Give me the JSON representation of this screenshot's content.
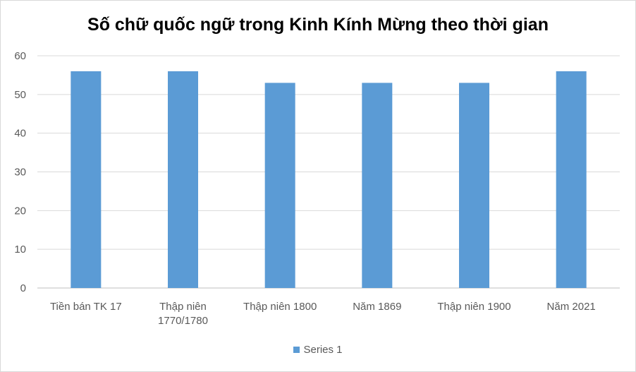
{
  "chart_data": {
    "type": "bar",
    "title": "Số chữ quốc ngữ trong Kinh Kính Mừng theo thời gian",
    "categories": [
      "Tiền bán TK 17",
      "Thập niên 1770/1780",
      "Thập niên 1800",
      "Năm 1869",
      "Thập niên 1900",
      "Năm 2021"
    ],
    "series": [
      {
        "name": "Series 1",
        "values": [
          56,
          56,
          53,
          53,
          53,
          56
        ],
        "color": "#5b9bd5"
      }
    ],
    "ylim": [
      0,
      60
    ],
    "yticks": [
      0,
      10,
      20,
      30,
      40,
      50,
      60
    ],
    "grid": true,
    "legend": "bottom"
  }
}
